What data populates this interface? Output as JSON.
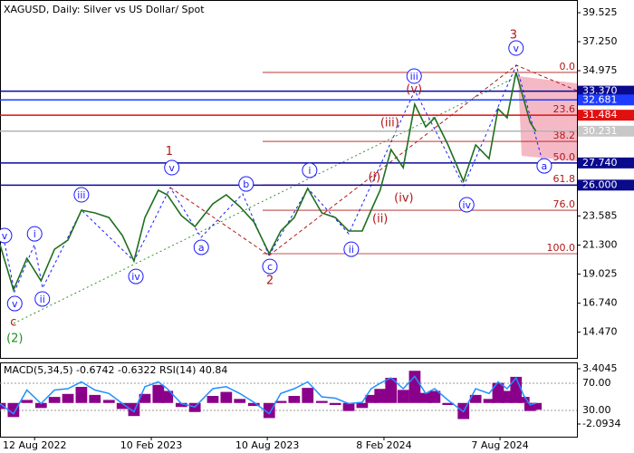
{
  "chart_data": [
    {
      "type": "line",
      "title": "XAGUSD, Daily:  Silver vs US Dollar/ Spot",
      "x": [
        0,
        21,
        42,
        64,
        85,
        106,
        127,
        148,
        170,
        191,
        209,
        226,
        247,
        261,
        283,
        304,
        332,
        353,
        374,
        396,
        420,
        438,
        459,
        480,
        502,
        523,
        544,
        565,
        579,
        593,
        610,
        629,
        647,
        664,
        678,
        699,
        723,
        742,
        763,
        777,
        791,
        805,
        817,
        827,
        836
      ],
      "values": [
        21.33,
        17.78,
        20.26,
        18.49,
        20.97,
        21.69,
        24.03,
        23.82,
        23.46,
        22.04,
        20.05,
        23.46,
        25.6,
        25.24,
        23.61,
        22.75,
        24.53,
        25.24,
        24.32,
        23.11,
        20.62,
        22.4,
        23.46,
        25.74,
        23.82,
        23.46,
        22.4,
        22.4,
        24.03,
        25.6,
        28.79,
        27.37,
        32.35,
        30.57,
        31.28,
        29.15,
        26.31,
        29.15,
        28.08,
        31.99,
        31.28,
        34.84,
        32.7,
        30.93,
        30.23
      ],
      "color": "#1f6f1f",
      "xlim": [
        0,
        900
      ],
      "xticks": [
        {
          "value": 54,
          "label": "12 Aug 2022"
        },
        {
          "value": 236,
          "label": "10 Feb 2023"
        },
        {
          "value": 417,
          "label": "10 Aug 2023"
        },
        {
          "value": 599,
          "label": "8 Feb 2024"
        },
        {
          "value": 780,
          "label": "7 Aug 2024"
        }
      ],
      "ylim": [
        12.45,
        40.52
      ],
      "yticks": [
        39.525,
        {
          "value": 37.25,
          "label": "37.250"
        },
        34.975,
        23.585,
        {
          "value": 21.3,
          "label": "21.300"
        },
        19.025,
        {
          "value": 16.74,
          "label": "16.740"
        },
        {
          "value": 14.47,
          "label": "14.470"
        }
      ],
      "levels": [
        {
          "value": 33.37,
          "label": "33.370",
          "color": "#0a0aa0",
          "box_color": "#0a0a8c",
          "text_color": "#ffffff"
        },
        {
          "value": 32.681,
          "label": "32.681",
          "color": "#1e3cff",
          "box_color": "#1e3cff",
          "text_color": "#ffffff"
        },
        {
          "value": 31.484,
          "label": "31.484",
          "color": "#e01010",
          "box_color": "#e01010",
          "text_color": "#ffffff"
        },
        {
          "value": 30.231,
          "label": "30.231",
          "color": "#b4b4b4",
          "box_color": "#c8c8c8",
          "text_color": "#ffffff"
        },
        {
          "value": 27.74,
          "label": "27.740",
          "color": "#0a0aa0",
          "box_color": "#0a0a8c",
          "text_color": "#ffffff"
        },
        {
          "value": 26,
          "label": "26.000",
          "color": "#0a0aa0",
          "box_color": "#0a0a8c",
          "text_color": "#ffffff"
        }
      ],
      "fib_color": "#b01818",
      "fib_levels": [
        {
          "value": 34.84,
          "label": "0.0"
        },
        {
          "value": 31.49,
          "label": "23.6"
        },
        {
          "value": 29.43,
          "label": "38.2"
        },
        {
          "value": 27.73,
          "label": "50.0"
        },
        {
          "value": 26.02,
          "label": "61.8"
        },
        {
          "value": 24.03,
          "label": "76.0"
        },
        {
          "value": 20.62,
          "label": "100.0"
        }
      ],
      "waves": [
        {
          "text": "v",
          "x": 7,
          "y": 22.04,
          "color": "#1a1aff",
          "circled": true
        },
        {
          "text": "i",
          "x": 54,
          "y": 22.18,
          "color": "#1a1aff",
          "circled": true
        },
        {
          "text": "v",
          "x": 23,
          "y": 16.71,
          "color": "#1a1aff",
          "circled": true
        },
        {
          "text": "ii",
          "x": 66,
          "y": 17.07,
          "color": "#1a1aff",
          "circled": true
        },
        {
          "text": "c",
          "x": 21,
          "y": 15.3,
          "color": "#b01818",
          "circled": false
        },
        {
          "text": "(2)",
          "x": 23,
          "y": 14.0,
          "color": "#1f8f1f",
          "circled": false
        },
        {
          "text": "iii",
          "x": 127,
          "y": 25.24,
          "color": "#1a1aff",
          "circled": true
        },
        {
          "text": "iv",
          "x": 212,
          "y": 18.84,
          "color": "#1a1aff",
          "circled": true
        },
        {
          "text": "v",
          "x": 268,
          "y": 27.37,
          "color": "#1a1aff",
          "circled": true
        },
        {
          "text": "1",
          "x": 264,
          "y": 28.7,
          "color": "#b01818",
          "circled": false
        },
        {
          "text": "a",
          "x": 314,
          "y": 21.12,
          "color": "#1a1aff",
          "circled": true
        },
        {
          "text": "b",
          "x": 384,
          "y": 26.09,
          "color": "#1a1aff",
          "circled": true
        },
        {
          "text": "c",
          "x": 421,
          "y": 19.62,
          "color": "#1a1aff",
          "circled": true
        },
        {
          "text": "2",
          "x": 421,
          "y": 18.55,
          "color": "#b01818",
          "circled": false
        },
        {
          "text": "i",
          "x": 483,
          "y": 27.16,
          "color": "#1a1aff",
          "circled": true
        },
        {
          "text": "ii",
          "x": 548,
          "y": 20.97,
          "color": "#1a1aff",
          "circled": true
        },
        {
          "text": "(i)",
          "x": 584,
          "y": 26.66,
          "color": "#b01818",
          "circled": false
        },
        {
          "text": "(ii)",
          "x": 593,
          "y": 23.39,
          "color": "#b01818",
          "circled": false
        },
        {
          "text": "(iii)",
          "x": 608,
          "y": 30.93,
          "color": "#b01818",
          "circled": false
        },
        {
          "text": "(iv)",
          "x": 630,
          "y": 25.03,
          "color": "#b01818",
          "circled": false
        },
        {
          "text": "(v)",
          "x": 646,
          "y": 33.55,
          "color": "#b01818",
          "circled": false
        },
        {
          "text": "iii",
          "x": 646,
          "y": 34.55,
          "color": "#1a1aff",
          "circled": true
        },
        {
          "text": "iv",
          "x": 728,
          "y": 24.46,
          "color": "#1a1aff",
          "circled": true
        },
        {
          "text": "v",
          "x": 805,
          "y": 36.75,
          "color": "#1a1aff",
          "circled": true
        },
        {
          "text": "3",
          "x": 801,
          "y": 37.82,
          "color": "#b01818",
          "circled": false
        },
        {
          "text": "a",
          "x": 849,
          "y": 27.51,
          "color": "#1a1aff",
          "circled": true
        }
      ]
    },
    {
      "type": "bar",
      "title": "MACD(5,34,5) -0.6742 -0.6322 RSI(14) 40.84",
      "series": [
        {
          "color": "#8b008b",
          "values": [
            -0.6,
            -1.4,
            0.3,
            -0.5,
            0.6,
            0.9,
            1.6,
            0.8,
            0.3,
            -0.6,
            -1.3,
            0.9,
            1.8,
            1.2,
            -0.4,
            -0.9,
            0.7,
            1.1,
            0.4,
            -0.3,
            -1.5,
            0.2,
            0.7,
            1.5,
            0.2,
            -0.2,
            -0.8,
            -0.5,
            0.8,
            1.4,
            2.5,
            1.3,
            3.2,
            1.0,
            1.2,
            -0.2,
            -1.6,
            0.8,
            0.4,
            2.0,
            1.2,
            2.6,
            0.6,
            -0.8,
            -0.67
          ]
        },
        {
          "color": "#1e90ff",
          "axis": "y2",
          "values": [
            40,
            25,
            60,
            40,
            60,
            62,
            72,
            60,
            55,
            40,
            28,
            65,
            72,
            62,
            40,
            35,
            62,
            65,
            55,
            42,
            25,
            55,
            62,
            72,
            50,
            48,
            40,
            42,
            62,
            70,
            78,
            62,
            80,
            55,
            62,
            45,
            28,
            62,
            55,
            72,
            62,
            78,
            52,
            38,
            40.84
          ]
        }
      ],
      "ylim": [
        -3.355,
        4.035
      ],
      "yticks": [
        3.4045,
        -2.0934
      ],
      "y2lim": [
        -8.7,
        100.7
      ],
      "y2ticks": [
        {
          "value": 70,
          "label": "70.00"
        },
        {
          "value": 30,
          "label": "30.00"
        }
      ]
    }
  ]
}
